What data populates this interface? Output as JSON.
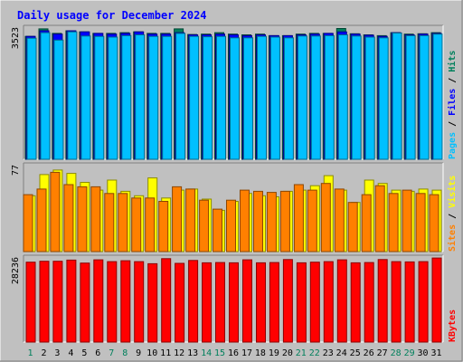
{
  "chart_data": [
    {
      "type": "bar",
      "title": "Daily usage for December 2024",
      "categories": [
        "1",
        "2",
        "3",
        "4",
        "5",
        "6",
        "7",
        "8",
        "9",
        "10",
        "11",
        "12",
        "13",
        "14",
        "15",
        "16",
        "17",
        "18",
        "19",
        "20",
        "21",
        "22",
        "23",
        "24",
        "25",
        "26",
        "27",
        "28",
        "29",
        "30",
        "31"
      ],
      "weekend_days": [
        "1",
        "7",
        "8",
        "14",
        "15",
        "21",
        "22",
        "28",
        "29"
      ],
      "y_max_label": "3523",
      "ylim": [
        0,
        3523
      ],
      "series": [
        {
          "name": "Hits",
          "color": "#00805c",
          "values": [
            3300,
            3500,
            3380,
            3450,
            3420,
            3380,
            3380,
            3400,
            3420,
            3380,
            3380,
            3500,
            3350,
            3360,
            3400,
            3360,
            3340,
            3360,
            3320,
            3320,
            3360,
            3380,
            3380,
            3510,
            3370,
            3340,
            3320,
            3400,
            3360,
            3370,
            3400
          ]
        },
        {
          "name": "Files",
          "color": "#0000ff",
          "values": [
            3300,
            3450,
            3360,
            3450,
            3420,
            3380,
            3360,
            3380,
            3420,
            3360,
            3360,
            3400,
            3340,
            3340,
            3360,
            3340,
            3320,
            3340,
            3320,
            3320,
            3340,
            3360,
            3380,
            3420,
            3360,
            3330,
            3300,
            3400,
            3340,
            3360,
            3380
          ]
        },
        {
          "name": "Pages",
          "color": "#00c0ff",
          "values": [
            3250,
            3400,
            3200,
            3420,
            3310,
            3300,
            3280,
            3320,
            3340,
            3300,
            3300,
            3380,
            3300,
            3290,
            3300,
            3260,
            3260,
            3300,
            3280,
            3260,
            3310,
            3310,
            3320,
            3340,
            3310,
            3280,
            3260,
            3390,
            3320,
            3320,
            3360
          ]
        }
      ]
    },
    {
      "type": "bar",
      "y_max_label": "77",
      "ylim": [
        0,
        77
      ],
      "series": [
        {
          "name": "Visits",
          "color": "#ffff00",
          "values": [
            50,
            69,
            73,
            70,
            62,
            55,
            64,
            54,
            50,
            66,
            48,
            55,
            56,
            47,
            37,
            45,
            52,
            50,
            49,
            54,
            55,
            59,
            68,
            55,
            44,
            64,
            61,
            55,
            54,
            56,
            55
          ]
        },
        {
          "name": "Sites",
          "color": "#ff8000",
          "values": [
            51,
            56,
            71,
            60,
            58,
            58,
            52,
            52,
            48,
            48,
            45,
            58,
            56,
            46,
            38,
            46,
            55,
            54,
            53,
            54,
            60,
            55,
            61,
            56,
            44,
            51,
            59,
            52,
            55,
            52,
            51
          ]
        }
      ]
    },
    {
      "type": "bar",
      "y_max_label": "28236",
      "ylim": [
        0,
        28236
      ],
      "series": [
        {
          "name": "KBytes",
          "color": "#ff0000",
          "values": [
            26800,
            27100,
            27100,
            27500,
            26500,
            27600,
            27000,
            27300,
            27000,
            26300,
            28000,
            26400,
            27400,
            26600,
            26700,
            26600,
            27600,
            26600,
            26700,
            27700,
            26600,
            26800,
            27000,
            27600,
            26600,
            26700,
            27700,
            27000,
            26900,
            27000,
            28200
          ]
        }
      ]
    }
  ]
}
